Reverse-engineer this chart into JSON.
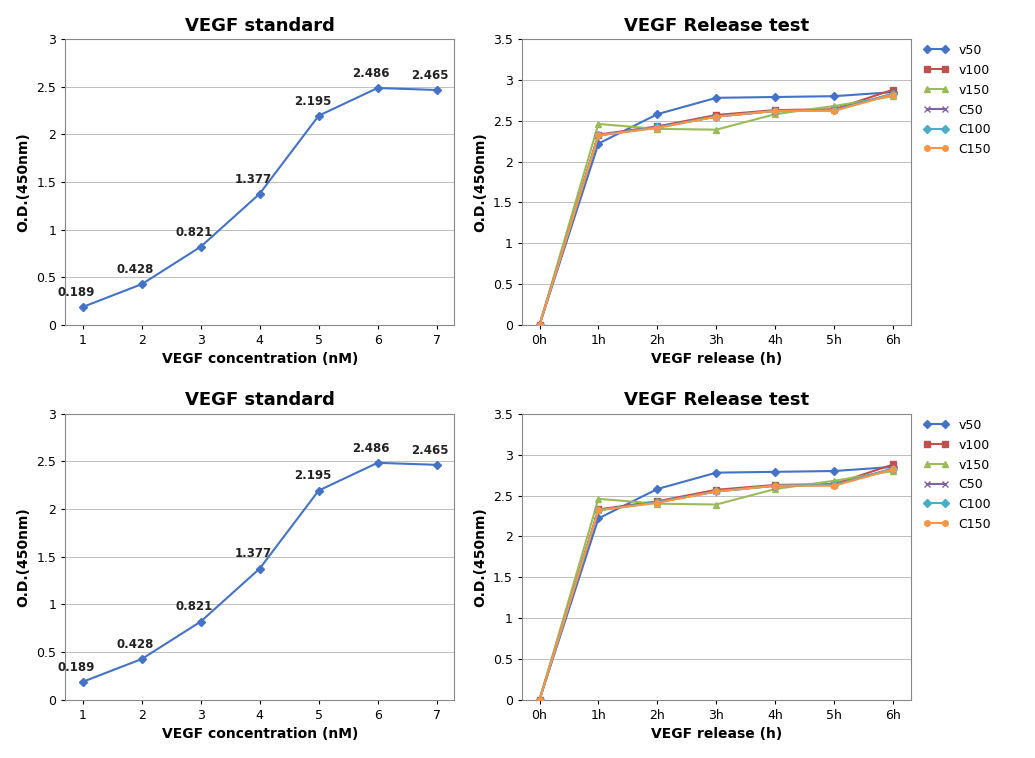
{
  "std_title": "VEGF standard",
  "std_xlabel": "VEGF concentration (nM)",
  "std_ylabel": "O.D.(450nm)",
  "std_x": [
    1,
    2,
    3,
    4,
    5,
    6,
    7
  ],
  "std_y": [
    0.189,
    0.428,
    0.821,
    1.377,
    2.195,
    2.486,
    2.465
  ],
  "std_xlim": [
    0.7,
    7.3
  ],
  "std_ylim": [
    0,
    3
  ],
  "std_yticks": [
    0,
    0.5,
    1,
    1.5,
    2,
    2.5,
    3
  ],
  "std_xticks": [
    1,
    2,
    3,
    4,
    5,
    6,
    7
  ],
  "std_color": "#4472C4",
  "std_annotations": [
    [
      1,
      0.189,
      "0.189",
      -18,
      8
    ],
    [
      2,
      0.428,
      "0.428",
      -18,
      8
    ],
    [
      3,
      0.821,
      "0.821",
      -18,
      8
    ],
    [
      4,
      1.377,
      "1.377",
      -18,
      8
    ],
    [
      5,
      2.195,
      "2.195",
      -18,
      8
    ],
    [
      6,
      2.486,
      "2.486",
      -18,
      8
    ],
    [
      7,
      2.465,
      "2.465",
      -18,
      8
    ]
  ],
  "rel_title": "VEGF Release test",
  "rel_xlabel": "VEGF release (h)",
  "rel_ylabel": "O.D.(450nm)",
  "rel_xtick_labels": [
    "0h",
    "1h",
    "2h",
    "3h",
    "4h",
    "5h",
    "6h"
  ],
  "rel_x": [
    0,
    1,
    2,
    3,
    4,
    5,
    6
  ],
  "rel_ylim": [
    0,
    3.5
  ],
  "rel_yticks": [
    0,
    0.5,
    1,
    1.5,
    2,
    2.5,
    3,
    3.5
  ],
  "series": [
    {
      "name": "v50",
      "color": "#4472C4",
      "marker": "D",
      "values": [
        0,
        2.22,
        2.58,
        2.78,
        2.79,
        2.8,
        2.85
      ]
    },
    {
      "name": "v100",
      "color": "#C0504D",
      "marker": "s",
      "values": [
        0,
        2.33,
        2.43,
        2.57,
        2.63,
        2.64,
        2.88
      ]
    },
    {
      "name": "v150",
      "color": "#9BBB59",
      "marker": "^",
      "values": [
        0,
        2.46,
        2.4,
        2.39,
        2.58,
        2.68,
        2.8
      ]
    },
    {
      "name": "C50",
      "color": "#8064A2",
      "marker": "x",
      "values": [
        0,
        2.32,
        2.42,
        2.55,
        2.62,
        2.63,
        2.83
      ]
    },
    {
      "name": "C100",
      "color": "#4BACC6",
      "marker": "D",
      "values": [
        0,
        2.32,
        2.42,
        2.55,
        2.62,
        2.63,
        2.83
      ]
    },
    {
      "name": "C150",
      "color": "#F79646",
      "marker": "o",
      "values": [
        0,
        2.32,
        2.41,
        2.55,
        2.62,
        2.62,
        2.82
      ]
    }
  ],
  "bg_color": "#FFFFFF",
  "grid_color": "#BFBFBF",
  "title_fontsize": 13,
  "label_fontsize": 10,
  "tick_fontsize": 9,
  "annotation_fontsize": 8.5,
  "legend_fontsize": 9
}
